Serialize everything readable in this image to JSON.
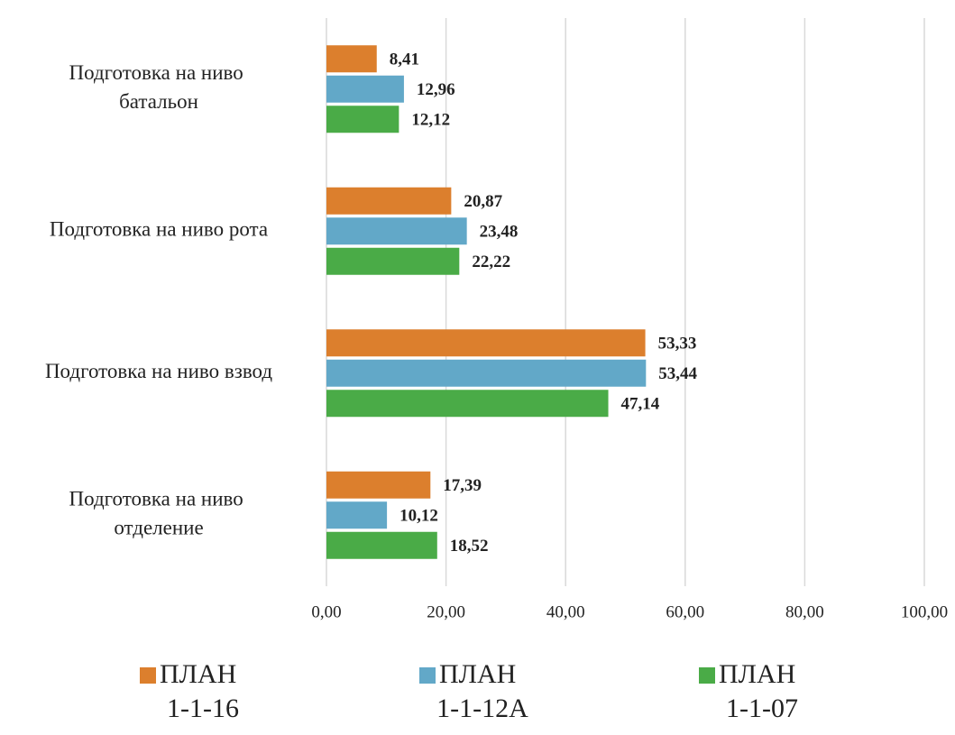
{
  "chart_data": {
    "type": "barh",
    "categories": [
      "Подготовка на ниво батальон",
      "Подготовка на ниво рота",
      "Подготовка на ниво взвод",
      "Подготовка на ниво отделение"
    ],
    "series": [
      {
        "name": "ПЛАН 1-1-16",
        "color": "#dc7f2d",
        "values": [
          8.41,
          20.87,
          53.33,
          17.39
        ],
        "value_labels": [
          "8,41",
          "20,87",
          "53,33",
          "17,39"
        ]
      },
      {
        "name": "ПЛАН 1-1-12А",
        "color": "#62a8c8",
        "values": [
          12.96,
          23.48,
          53.44,
          10.12
        ],
        "value_labels": [
          "12,96",
          "23,48",
          "53,44",
          "10,12"
        ]
      },
      {
        "name": "ПЛАН 1-1-07",
        "color": "#4aab47",
        "values": [
          12.12,
          22.22,
          47.14,
          18.52
        ],
        "value_labels": [
          "12,12",
          "22,22",
          "47,14",
          "18,52"
        ]
      }
    ],
    "xlim": [
      0,
      100
    ],
    "xticks": [
      {
        "value": 0,
        "label": "0,00"
      },
      {
        "value": 20,
        "label": "20,00"
      },
      {
        "value": 40,
        "label": "40,00"
      },
      {
        "value": 60,
        "label": "60,00"
      },
      {
        "value": 80,
        "label": "80,00"
      },
      {
        "value": 100,
        "label": "100,00"
      }
    ],
    "grid": true,
    "legend": "bottom"
  }
}
